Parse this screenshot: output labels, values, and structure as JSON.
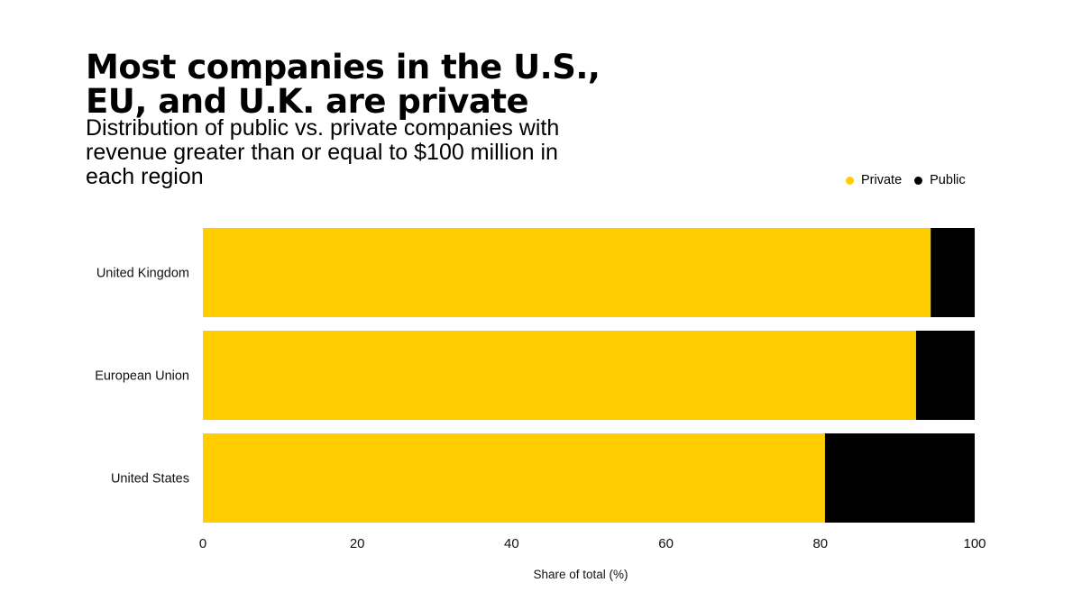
{
  "colors": {
    "private": "#ffcd00",
    "public": "#000000"
  },
  "chart_data": {
    "type": "bar",
    "orientation": "horizontal",
    "stacked": true,
    "title": "Most companies in the U.S., EU, and U.K. are private",
    "subtitle": "Distribution of public vs. private companies with revenue greater than or equal to $100 million in each region",
    "categories": [
      "United Kingdom",
      "European Union",
      "United States"
    ],
    "series": [
      {
        "name": "Private",
        "values": [
          94.3,
          92.4,
          80.6
        ]
      },
      {
        "name": "Public",
        "values": [
          5.7,
          7.6,
          19.4
        ]
      }
    ],
    "xlabel": "Share of total (%)",
    "ylabel": "",
    "xlim": [
      0,
      100
    ],
    "xticks": [
      0,
      20,
      40,
      60,
      80,
      100
    ],
    "legend_position": "top-right",
    "grid": false
  }
}
